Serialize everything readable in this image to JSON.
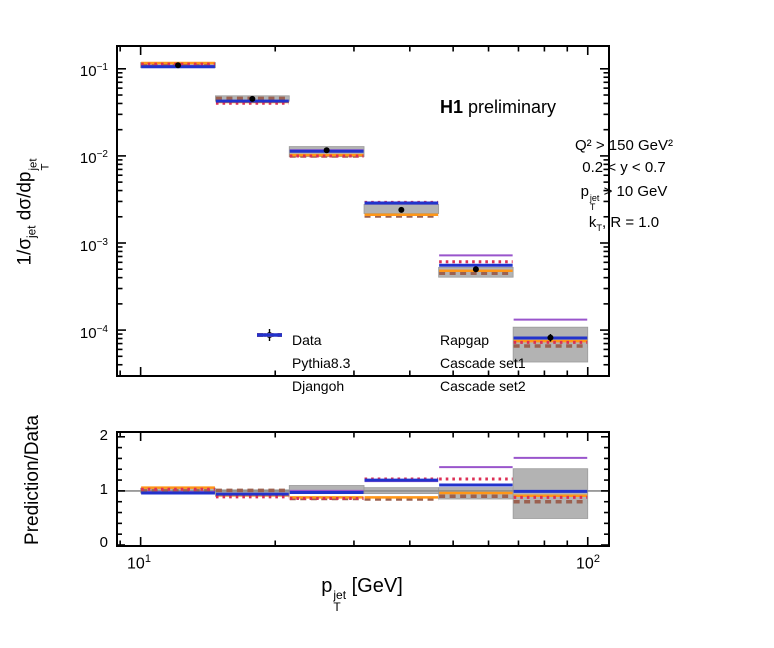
{
  "header": {
    "experiment_bold": "H1",
    "experiment_rest": " preliminary"
  },
  "annotations": {
    "q2": "Q² > 150 GeV²",
    "y_range": "0.2 < y < 0.7",
    "pt_cut": {
      "base": "p",
      "sup": "jet",
      "sub": "T",
      "rest": " > 10 GeV"
    },
    "kt": {
      "base": "k",
      "sub": "T",
      "rest": ", R = 1.0"
    }
  },
  "axes": {
    "ylabel_main": {
      "p1": "1/σ",
      "s1": "jet",
      "p2": " dσ/dp",
      "sup": "jet",
      "sub": "T"
    },
    "ylabel_ratio": "Prediction/Data",
    "xlabel": {
      "base": "p",
      "sup": "jet",
      "sub": "T",
      "rest": " [GeV]"
    },
    "yticks_main": [
      {
        "b": "10",
        "e": "−1"
      },
      {
        "b": "10",
        "e": "−2"
      },
      {
        "b": "10",
        "e": "−3"
      },
      {
        "b": "10",
        "e": "−4"
      }
    ],
    "yticks_ratio": [
      "2",
      "1",
      "0"
    ],
    "xticks": [
      {
        "b": "10",
        "e": "1"
      },
      {
        "b": "10",
        "e": "2"
      }
    ]
  },
  "legend": {
    "items": [
      {
        "label": "Data",
        "swatch": "data"
      },
      {
        "label": "Pythia8.3",
        "swatch": "series:0"
      },
      {
        "label": "Djangoh",
        "swatch": "series:1"
      },
      {
        "label": "Rapgap",
        "swatch": "series:2"
      },
      {
        "label": "Cascade set1",
        "swatch": "series:3"
      },
      {
        "label": "Cascade set2",
        "swatch": "series:4"
      }
    ]
  },
  "colors": {
    "band_gray": "#b3b3b3",
    "band_edge": "#9b9b9b",
    "unity_line": "#8c8c8c",
    "data_marker": "#000000"
  },
  "chart_data": [
    {
      "type": "line",
      "panel": "main",
      "title": "H1 preliminary",
      "xlabel": "pT_jet [GeV]",
      "ylabel": "1/sigma_jet dsigma/dpT_jet",
      "xscale": "log",
      "yscale": "log",
      "xlim": [
        8.9,
        111
      ],
      "ylim": [
        3.05e-05,
        0.178
      ],
      "bin_edges": [
        10,
        14.7,
        21.5,
        31.6,
        46.4,
        68.1,
        100
      ],
      "data": {
        "label": "Data",
        "values": [
          0.11,
          0.0452,
          0.0116,
          0.0024,
          0.0005,
          8.2e-05
        ],
        "stat_err_frac": [
          0.015,
          0.015,
          0.02,
          0.03,
          0.05,
          0.1
        ],
        "band_lo": [
          0.103,
          0.0425,
          0.0098,
          0.00218,
          0.000405,
          4.3e-05
        ],
        "band_hi": [
          0.118,
          0.049,
          0.0128,
          0.00277,
          0.000525,
          0.000108
        ]
      },
      "series": [
        {
          "name": "Pythia8.3",
          "color": "#9955cc",
          "style": "solid",
          "width": 2,
          "values": [
            0.1078,
            0.0416,
            0.0116,
            0.00283,
            0.00072,
            0.000132
          ]
        },
        {
          "name": "Djangoh",
          "color": "#9b6150",
          "style": "dashed",
          "width": 3.5,
          "values": [
            0.11,
            0.0457,
            0.00998,
            0.00204,
            0.00045,
            6.56e-05
          ]
        },
        {
          "name": "Rapgap",
          "color": "#ff9718",
          "style": "solid",
          "width": 2.5,
          "values": [
            0.1166,
            0.0416,
            0.0102,
            0.00211,
            0.00048,
            7.46e-05
          ]
        },
        {
          "name": "Cascade set1",
          "color": "#dc2f55",
          "style": "dotted",
          "width": 3,
          "values": [
            0.1133,
            0.0402,
            0.00998,
            0.00293,
            0.00061,
            7.22e-05
          ]
        },
        {
          "name": "Cascade set2",
          "color": "#2233cc",
          "style": "solid",
          "width": 3,
          "values": [
            0.1056,
            0.0425,
            0.0113,
            0.00288,
            0.000555,
            8.12e-05
          ]
        }
      ]
    },
    {
      "type": "ratio",
      "panel": "ratio",
      "ylabel": "Prediction/Data",
      "xscale": "log",
      "xlim": [
        8.9,
        111
      ],
      "ylim": [
        0,
        2.07
      ],
      "yticks_major": [
        0,
        1,
        2
      ],
      "yticks_minor": [
        0.2,
        0.4,
        0.6,
        0.8,
        1.2,
        1.4,
        1.6,
        1.8
      ],
      "band_lo": [
        0.96,
        0.9,
        0.95,
        0.95,
        0.85,
        0.49
      ],
      "band_hi": [
        1.05,
        1.02,
        1.1,
        1.06,
        1.06,
        1.41
      ],
      "unity": 1,
      "series": [
        {
          "name": "Pythia8.3",
          "values": [
            0.98,
            0.92,
            1.0,
            1.18,
            1.44,
            1.61
          ]
        },
        {
          "name": "Djangoh",
          "values": [
            1.0,
            1.01,
            0.86,
            0.85,
            0.9,
            0.8
          ]
        },
        {
          "name": "Rapgap",
          "values": [
            1.06,
            0.92,
            0.88,
            0.88,
            0.96,
            0.91
          ]
        },
        {
          "name": "Cascade set1",
          "values": [
            1.03,
            0.89,
            0.86,
            1.22,
            1.22,
            0.88
          ]
        },
        {
          "name": "Cascade set2",
          "values": [
            0.96,
            0.94,
            0.97,
            1.2,
            1.11,
            0.99
          ]
        }
      ]
    }
  ]
}
